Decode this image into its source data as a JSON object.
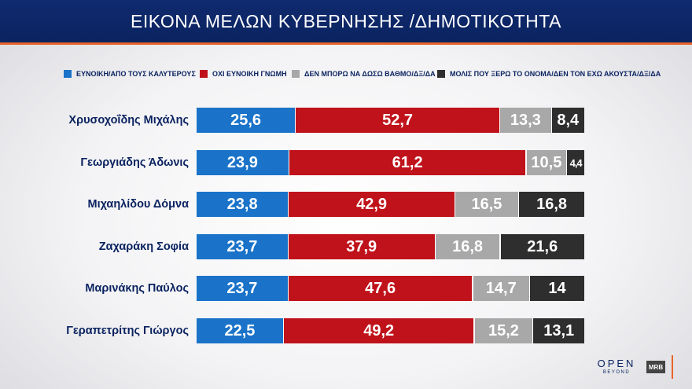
{
  "header": {
    "title": "ΕΙΚΟΝΑ ΜΕΛΩΝ ΚΥΒΕΡΝΗΣΗΣ /ΔΗΜΟΤΙΚΟΤΗΤΑ"
  },
  "colors": {
    "positive": "#1a73c9",
    "negative": "#c0121a",
    "cannot_rate": "#a8a8a8",
    "barely_know": "#2e2e2e"
  },
  "chart_data": {
    "type": "bar",
    "orientation": "horizontal",
    "stacked": true,
    "categories": [
      "Χρυσοχοΐδης Μιχάλης",
      "Γεωργιάδης Άδωνις",
      "Μιχαηλίδου Δόμνα",
      "Ζαχαράκη Σοφία",
      "Μαρινάκης Παύλος",
      "Γεραπετρίτης Γιώργος"
    ],
    "series": [
      {
        "name": "ΕΥΝΟΙΚΗ/ΑΠΟ ΤΟΥΣ ΚΑΛΥΤΕΡΟΥΣ",
        "color": "#1a73c9",
        "values": [
          25.6,
          23.9,
          23.8,
          23.7,
          23.7,
          22.5
        ],
        "labels": [
          "25,6",
          "23,9",
          "23,8",
          "23,7",
          "23,7",
          "22,5"
        ]
      },
      {
        "name": "ΟΧΙ ΕΥΝΟΙΚΗ ΓΝΩΜΗ",
        "color": "#c0121a",
        "values": [
          52.7,
          61.2,
          42.9,
          37.9,
          47.6,
          49.2
        ],
        "labels": [
          "52,7",
          "61,2",
          "42,9",
          "37,9",
          "47,6",
          "49,2"
        ]
      },
      {
        "name": "ΔΕΝ ΜΠΟΡΩ ΝΑ ΔΩΣΩ ΒΑΘΜΟ/ΔΞ/ΔΑ",
        "color": "#a8a8a8",
        "values": [
          13.3,
          10.5,
          16.5,
          16.8,
          14.7,
          15.2
        ],
        "labels": [
          "13,3",
          "10,5",
          "16,5",
          "16,8",
          "14,7",
          "15,2"
        ]
      },
      {
        "name": "ΜΟΛΙΣ ΠΟΥ ΞΕΡΩ ΤΟ ΟΝΟΜΑ/ΔΕΝ ΤΟΝ ΕΧΩ ΑΚΟΥΣΤΑ/ΔΞ/ΔΑ",
        "color": "#2e2e2e",
        "values": [
          8.4,
          4.4,
          16.8,
          21.6,
          14,
          13.1
        ],
        "labels": [
          "8,4",
          "4,4",
          "16,8",
          "21,6",
          "14",
          "13,1"
        ]
      }
    ],
    "legend_position": "top",
    "grid": false
  },
  "footer": {
    "logo_open": "OPEN",
    "logo_beyond": "BEYOND",
    "logo_mrb": "MRB"
  }
}
